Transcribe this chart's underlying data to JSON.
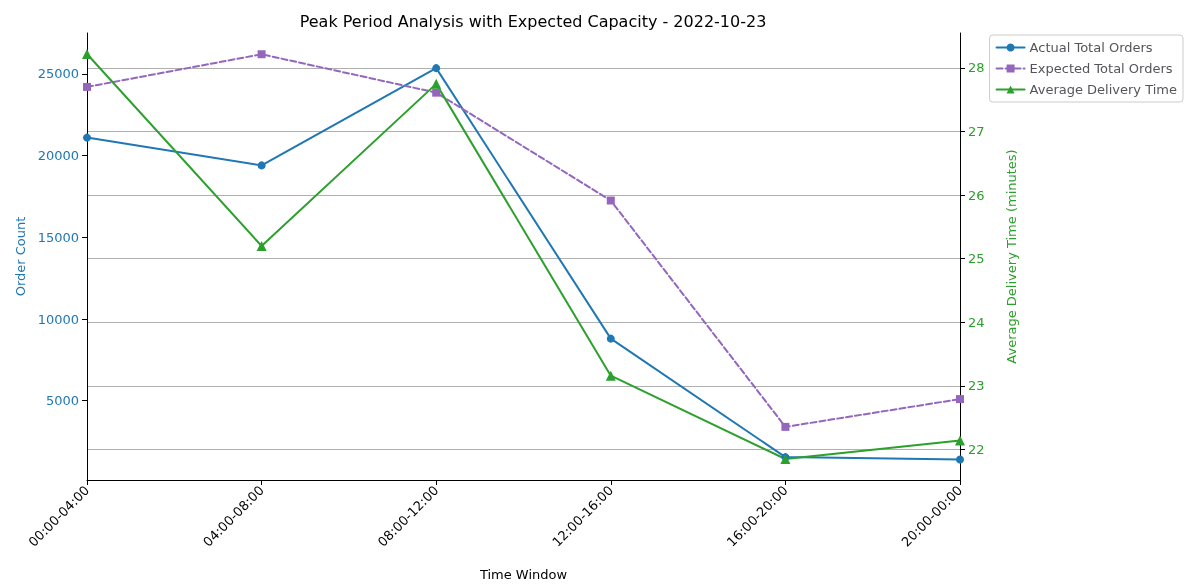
{
  "chart_data": {
    "type": "line",
    "title": "Peak Period Analysis with Expected Capacity - 2022-10-23",
    "xlabel": "Time Window",
    "ylabel": "Order Count",
    "y2label": "Average Delivery Time (minutes)",
    "categories": [
      "00:00-04:00",
      "04:00-08:00",
      "08:00-12:00",
      "12:00-16:00",
      "16:00-20:00",
      "20:00-00:00"
    ],
    "series": [
      {
        "name": "Actual Total Orders",
        "color": "#1f77b4",
        "marker": "circle",
        "line_style": "solid",
        "values": [
          21100,
          19400,
          25350,
          8800,
          1550,
          1400
        ]
      },
      {
        "name": "Expected Total Orders",
        "color": "#9467bd",
        "marker": "square",
        "line_style": "dashed",
        "values": [
          24200,
          26200,
          23850,
          17250,
          3400,
          5100
        ]
      },
      {
        "name": "Average Delivery Time",
        "color": "#2ca02c",
        "marker": "triangle",
        "line_style": "solid",
        "axis": "y2",
        "values": [
          28.22,
          25.2,
          27.75,
          23.16,
          21.85,
          22.14
        ]
      }
    ],
    "ylim": [
      150,
      27500
    ],
    "yticks": [
      5000,
      10000,
      15000,
      20000,
      25000
    ],
    "y2lim": [
      21.52,
      28.55
    ],
    "y2ticks": [
      22,
      23,
      24,
      25,
      26,
      27,
      28
    ],
    "grid": "y2",
    "legend": "top right"
  }
}
